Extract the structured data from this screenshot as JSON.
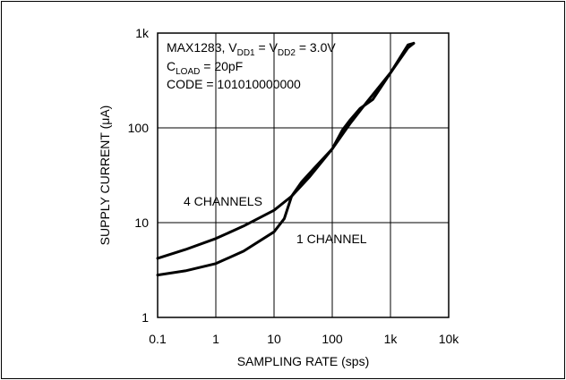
{
  "chart_data": {
    "type": "line",
    "title": "",
    "xlabel": "SAMPLING RATE (sps)",
    "ylabel": "SUPPLY CURRENT (μA)",
    "x_scale": "log",
    "y_scale": "log",
    "xlim": [
      0.1,
      10000
    ],
    "ylim": [
      1,
      1000
    ],
    "x_ticks": [
      0.1,
      1,
      10,
      100,
      1000,
      10000
    ],
    "x_tick_labels": [
      "0.1",
      "1",
      "10",
      "100",
      "1k",
      "10k"
    ],
    "y_ticks": [
      1,
      10,
      100,
      1000
    ],
    "y_tick_labels": [
      "1",
      "10",
      "100",
      "1k"
    ],
    "grid": true,
    "annotation_lines": [
      {
        "main": "MAX1283, V",
        "sub": "DD1",
        "mid": " = V",
        "sub2": "DD2",
        "tail": " = 3.0V"
      },
      {
        "main": "C",
        "sub": "LOAD",
        "tail": " = 20pF"
      },
      {
        "main": "CODE = 101010000000"
      }
    ],
    "series": [
      {
        "name": "4 CHANNELS",
        "x": [
          0.1,
          0.3,
          1,
          3,
          10,
          20,
          40,
          100,
          200,
          400,
          1000,
          2000,
          2500
        ],
        "y": [
          4.2,
          5.2,
          6.8,
          9.2,
          13.5,
          19,
          30,
          60,
          110,
          190,
          380,
          750,
          780
        ]
      },
      {
        "name": "1 CHANNEL",
        "x": [
          0.1,
          0.3,
          1,
          3,
          10,
          15,
          20,
          30,
          50,
          100,
          150,
          200,
          300,
          500,
          1000,
          2000,
          2500
        ],
        "y": [
          2.8,
          3.1,
          3.7,
          5.0,
          8.0,
          11,
          19,
          27,
          38,
          60,
          95,
          120,
          160,
          200,
          380,
          700,
          780
        ]
      }
    ]
  }
}
